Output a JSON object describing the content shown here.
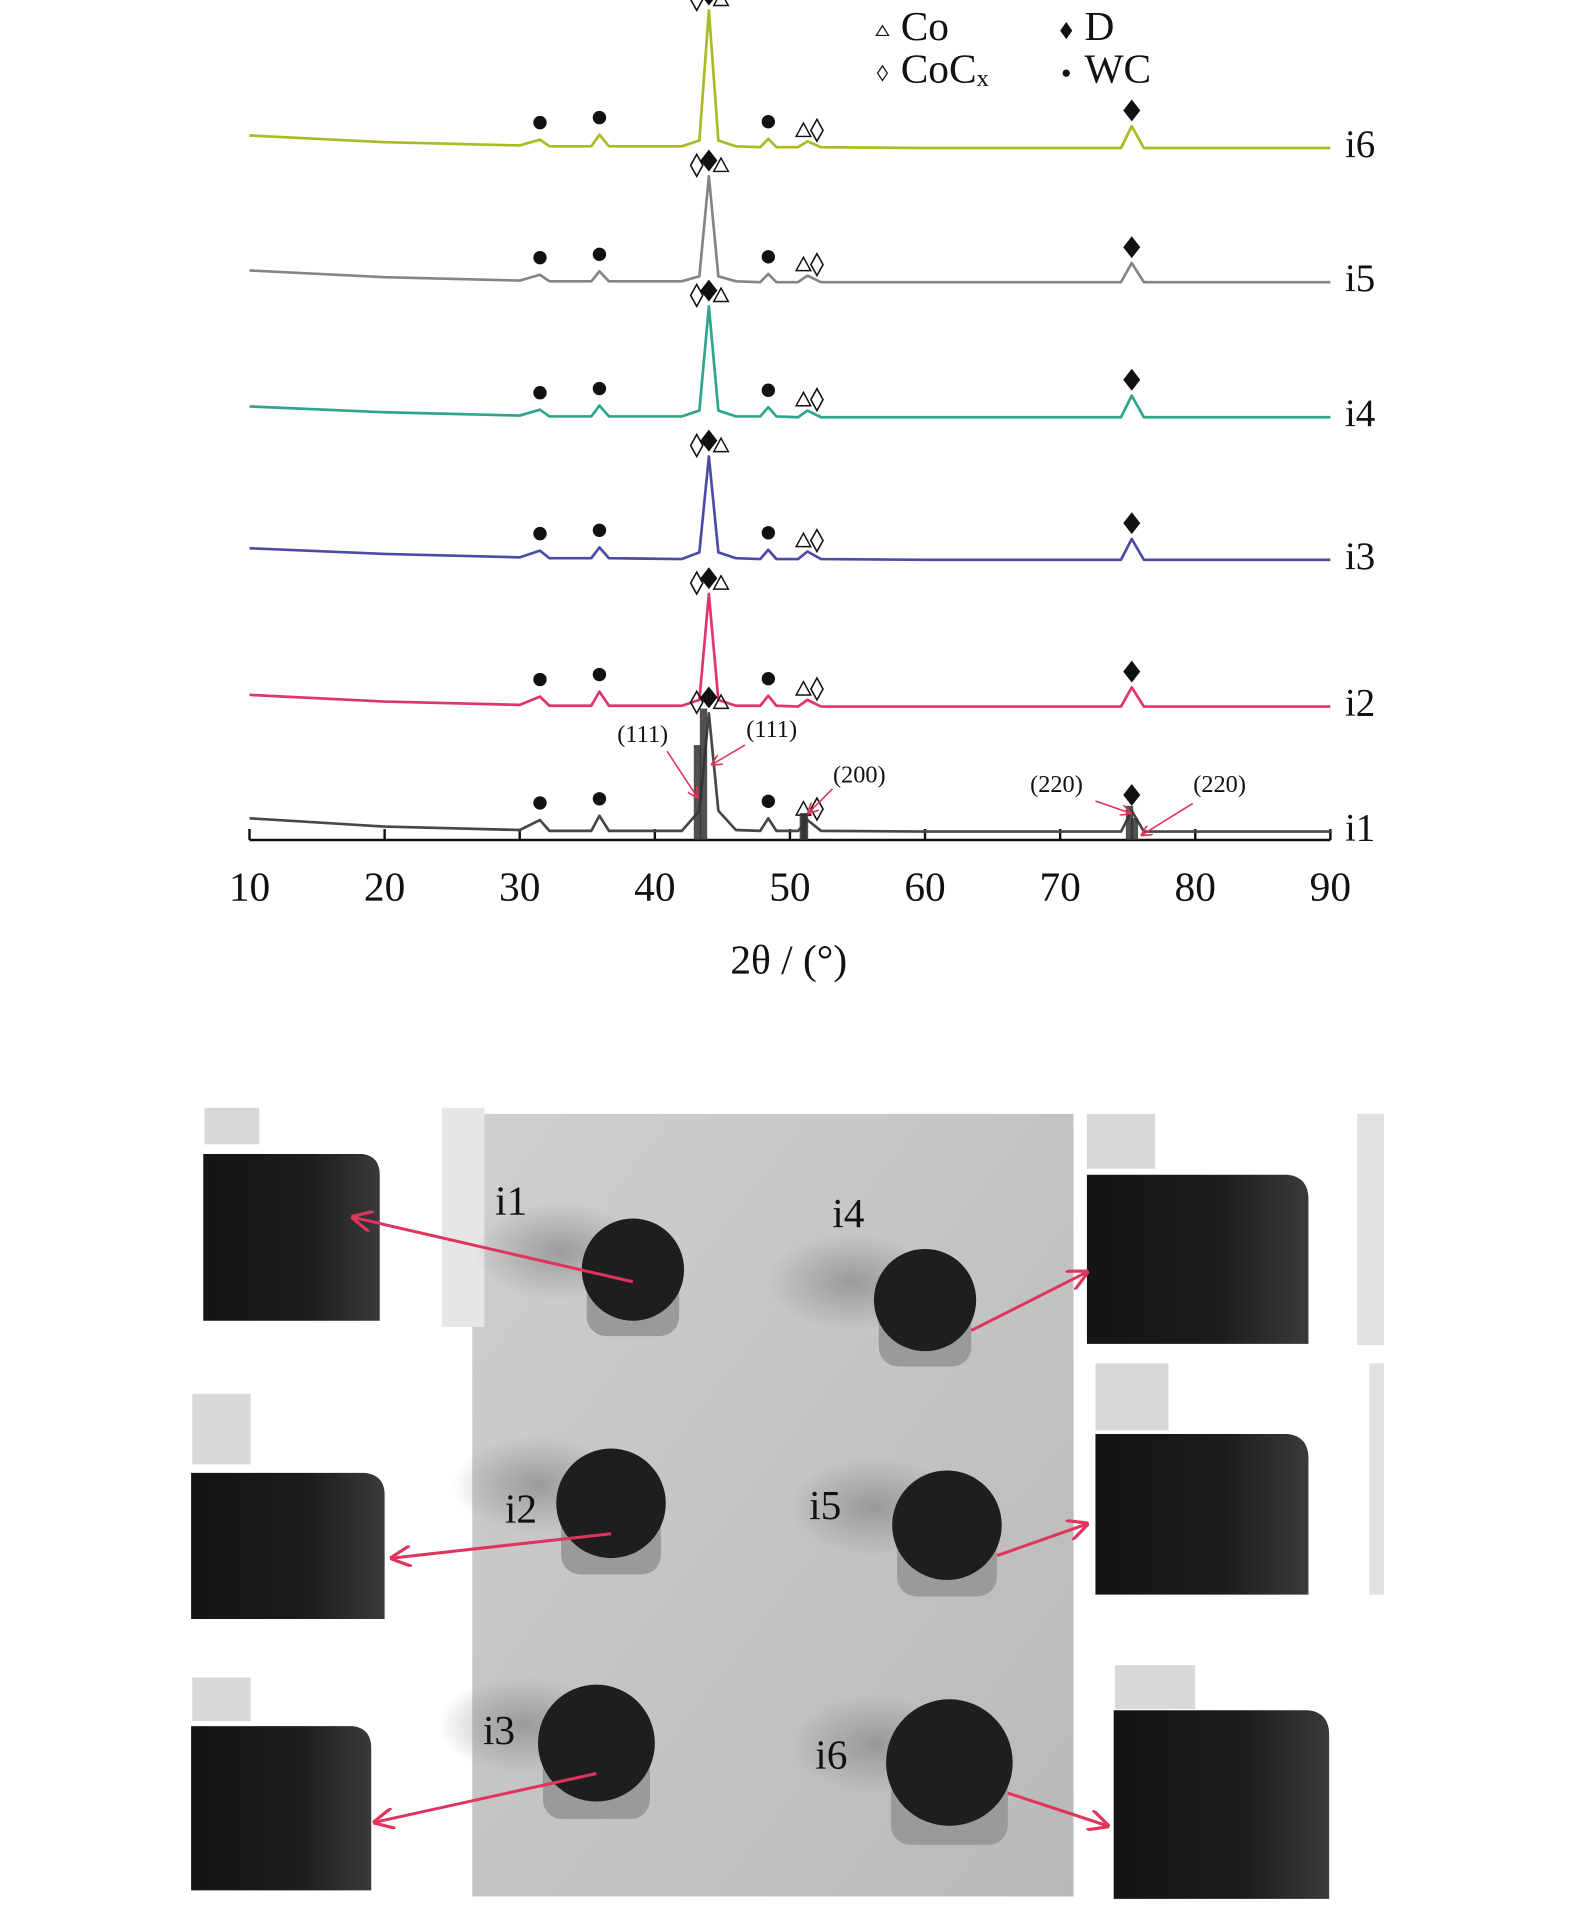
{
  "chart_data": {
    "type": "line",
    "x_label": "2θ / (°)",
    "x": [
      10,
      20,
      30,
      31.5,
      32.2,
      35.3,
      35.9,
      36.6,
      42,
      43.3,
      44,
      44.7,
      46,
      47.8,
      48.4,
      49,
      50.6,
      51.3,
      52.3,
      60,
      74.5,
      75.3,
      76.2,
      90
    ],
    "xlim": [
      10,
      90
    ],
    "xticks": [
      10,
      20,
      30,
      40,
      50,
      60,
      70,
      80,
      90
    ],
    "ylim": [
      0,
      100
    ],
    "series": [
      {
        "name": "i1",
        "color": "#474747",
        "values": [
          2.6,
          1.6,
          1.2,
          2.4,
          1.1,
          1.1,
          2.9,
          1.1,
          1.1,
          3.5,
          15.2,
          3.5,
          1.2,
          1.1,
          2.6,
          1.1,
          1.1,
          2.4,
          1.1,
          1.0,
          1.0,
          3.5,
          1.0,
          1.0
        ]
      },
      {
        "name": "i2",
        "color": "#e0346a",
        "values": [
          17.4,
          16.6,
          16.2,
          17.2,
          16.1,
          16.1,
          17.8,
          16.1,
          16.1,
          16.8,
          29.5,
          16.8,
          16.1,
          16.1,
          17.3,
          16.1,
          16.0,
          16.8,
          16.0,
          16.0,
          16.0,
          18.3,
          16.0,
          16.0
        ]
      },
      {
        "name": "i3",
        "color": "#4c4ba6",
        "values": [
          35.0,
          34.3,
          33.9,
          34.7,
          33.8,
          33.8,
          35.1,
          33.8,
          33.7,
          34.5,
          46.0,
          34.5,
          33.8,
          33.7,
          34.8,
          33.7,
          33.7,
          34.6,
          33.7,
          33.6,
          33.6,
          36.1,
          33.6,
          33.6
        ]
      },
      {
        "name": "i4",
        "color": "#2ea58c",
        "values": [
          52.0,
          51.3,
          50.9,
          51.6,
          50.8,
          50.8,
          52.1,
          50.8,
          50.8,
          51.5,
          64.0,
          51.5,
          50.8,
          50.8,
          51.9,
          50.8,
          50.7,
          51.5,
          50.7,
          50.7,
          50.7,
          53.3,
          50.7,
          50.7
        ]
      },
      {
        "name": "i5",
        "color": "#858585",
        "values": [
          68.3,
          67.5,
          67.1,
          67.8,
          67.0,
          67.0,
          68.2,
          67.0,
          67.0,
          67.6,
          79.6,
          67.6,
          67.0,
          66.9,
          67.9,
          66.9,
          66.9,
          67.7,
          66.9,
          66.9,
          66.9,
          69.2,
          66.9,
          66.9
        ]
      },
      {
        "name": "i6",
        "color": "#a9ba22",
        "values": [
          84.5,
          83.7,
          83.3,
          84.0,
          83.2,
          83.2,
          84.6,
          83.2,
          83.2,
          83.9,
          99.5,
          83.9,
          83.2,
          83.1,
          84.1,
          83.1,
          83.1,
          83.8,
          83.1,
          83.0,
          83.0,
          85.6,
          83.0,
          83.0
        ]
      }
    ],
    "phases": [
      {
        "name": "Co",
        "peaks": [
          44.9,
          51.0
        ]
      },
      {
        "name": "CoCₓ",
        "peaks": [
          43.1,
          52.0
        ]
      },
      {
        "name": "D",
        "peaks": [
          44.0,
          75.3
        ]
      },
      {
        "name": "WC",
        "peaks": [
          31.5,
          35.9,
          48.4
        ]
      }
    ],
    "annotations": [
      "(111)",
      "(111)",
      "(200)",
      "(220)",
      "(220)"
    ]
  }
}
